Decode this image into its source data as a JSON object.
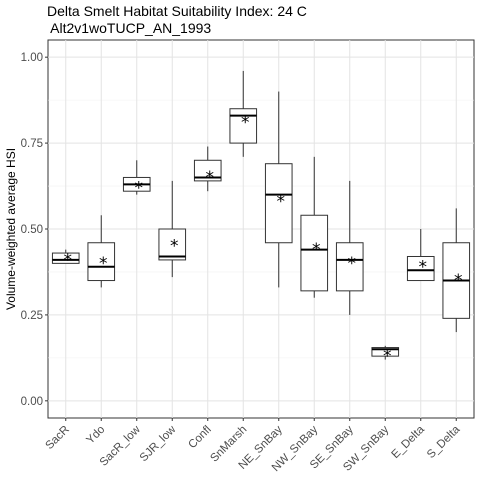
{
  "chart_data": {
    "type": "box",
    "title_lines": [
      "Delta Smelt Habitat Suitability Index: 24 C",
      " Alt2v1woTUCP_AN_1993"
    ],
    "xlabel": "",
    "ylabel": "Volume-weighted average HSI",
    "ylim": [
      -0.05,
      1.05
    ],
    "yticks": [
      0.0,
      0.25,
      0.5,
      0.75,
      1.0
    ],
    "ytick_labels": [
      "0.00",
      "0.25",
      "0.50",
      "0.75",
      "1.00"
    ],
    "grid": true,
    "mean_marker": "*",
    "categories": [
      "SacR",
      "Ydo",
      "SacR_low",
      "SJR_low",
      "Confl",
      "SnMarsh",
      "NE_SnBay",
      "NW_SnBay",
      "SE_SnBay",
      "SW_SnBay",
      "E_Delta",
      "S_Delta"
    ],
    "boxes": [
      {
        "whisker_low": 0.4,
        "q1": 0.4,
        "median": 0.41,
        "q3": 0.43,
        "whisker_high": 0.44,
        "mean": 0.42
      },
      {
        "whisker_low": 0.33,
        "q1": 0.35,
        "median": 0.39,
        "q3": 0.46,
        "whisker_high": 0.54,
        "mean": 0.41
      },
      {
        "whisker_low": 0.6,
        "q1": 0.61,
        "median": 0.63,
        "q3": 0.65,
        "whisker_high": 0.7,
        "mean": 0.63
      },
      {
        "whisker_low": 0.36,
        "q1": 0.41,
        "median": 0.42,
        "q3": 0.5,
        "whisker_high": 0.64,
        "mean": 0.46
      },
      {
        "whisker_low": 0.61,
        "q1": 0.64,
        "median": 0.65,
        "q3": 0.7,
        "whisker_high": 0.74,
        "mean": 0.66
      },
      {
        "whisker_low": 0.71,
        "q1": 0.75,
        "median": 0.83,
        "q3": 0.85,
        "whisker_high": 0.96,
        "mean": 0.82
      },
      {
        "whisker_low": 0.33,
        "q1": 0.46,
        "median": 0.6,
        "q3": 0.69,
        "whisker_high": 0.9,
        "mean": 0.59
      },
      {
        "whisker_low": 0.3,
        "q1": 0.32,
        "median": 0.44,
        "q3": 0.54,
        "whisker_high": 0.71,
        "mean": 0.45
      },
      {
        "whisker_low": 0.25,
        "q1": 0.32,
        "median": 0.41,
        "q3": 0.46,
        "whisker_high": 0.64,
        "mean": 0.41
      },
      {
        "whisker_low": 0.12,
        "q1": 0.13,
        "median": 0.15,
        "q3": 0.155,
        "whisker_high": 0.16,
        "mean": 0.14
      },
      {
        "whisker_low": 0.35,
        "q1": 0.35,
        "median": 0.38,
        "q3": 0.42,
        "whisker_high": 0.5,
        "mean": 0.4
      },
      {
        "whisker_low": 0.2,
        "q1": 0.24,
        "median": 0.35,
        "q3": 0.46,
        "whisker_high": 0.56,
        "mean": 0.36
      }
    ]
  }
}
